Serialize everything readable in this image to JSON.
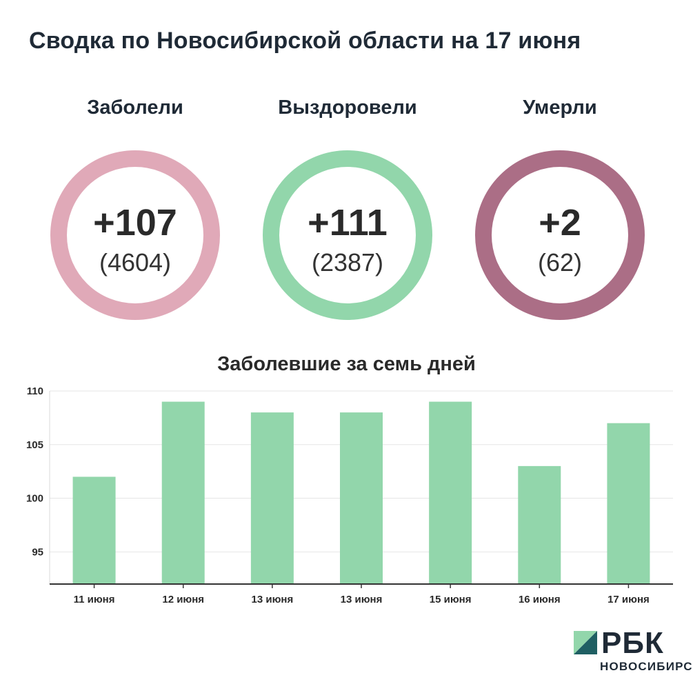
{
  "title": "Сводка по Новосибирской области на 17 июня",
  "stats": [
    {
      "label": "Заболели",
      "delta": "+107",
      "total": "(4604)",
      "color": "#e0a9b8"
    },
    {
      "label": "Выздоровели",
      "delta": "+111",
      "total": "(2387)",
      "color": "#92d6ab"
    },
    {
      "label": "Умерли",
      "delta": "+2",
      "total": "(62)",
      "color": "#ab6e86"
    }
  ],
  "chart_data": {
    "type": "bar",
    "title": "Заболевшие за семь дней",
    "categories": [
      "11 июня",
      "12 июня",
      "13 июня",
      "13 июня",
      "15 июня",
      "16 июня",
      "17 июня"
    ],
    "values": [
      102,
      109,
      108,
      108,
      109,
      103,
      107
    ],
    "ylim": [
      92,
      110
    ],
    "yticks": [
      95,
      100,
      105,
      110
    ],
    "grid": true,
    "bar_color": "#92d6ab"
  },
  "logo": {
    "name": "РБК",
    "city": "НОВОСИБИРСК",
    "mark_colors": [
      "#92d6ab",
      "#1f5f63"
    ]
  }
}
